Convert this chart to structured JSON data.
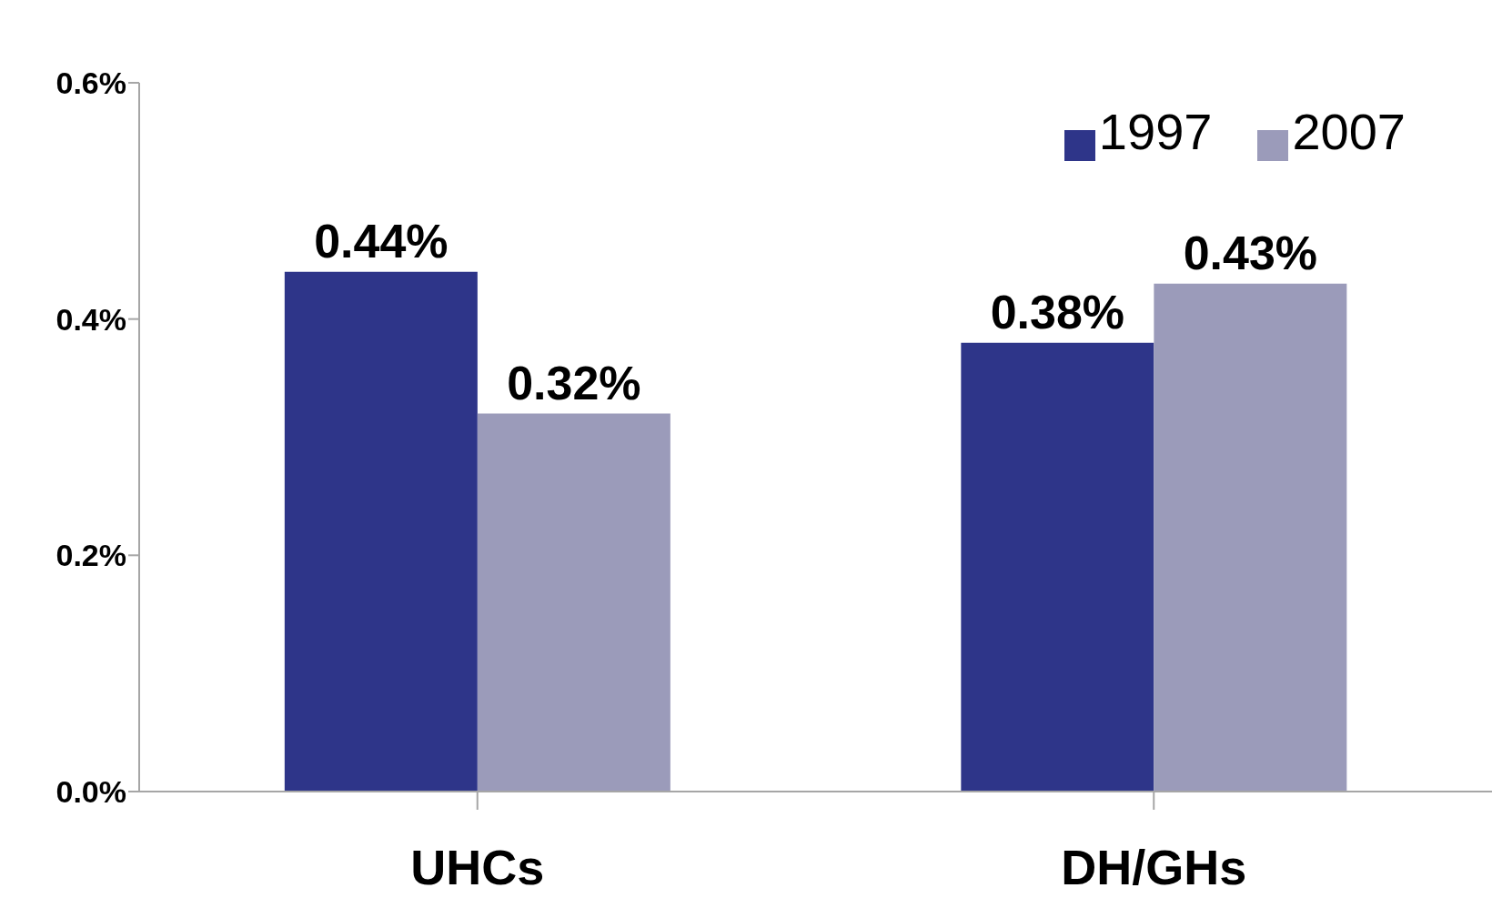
{
  "chart_data": {
    "type": "bar",
    "categories": [
      "UHCs",
      "DH/GHs"
    ],
    "series": [
      {
        "name": "1997",
        "color": "#2e3589",
        "values": [
          0.44,
          0.38
        ],
        "value_labels": [
          "0.44%",
          "0.38%"
        ]
      },
      {
        "name": "2007",
        "color": "#9b9bba",
        "values": [
          0.32,
          0.43
        ],
        "value_labels": [
          "0.32%",
          "0.43%"
        ]
      }
    ],
    "ylim": [
      0,
      0.6
    ],
    "yticks": [
      {
        "value": 0,
        "label": "0.0%"
      },
      {
        "value": 0.2,
        "label": "0.2%"
      },
      {
        "value": 0.4,
        "label": "0.4%"
      },
      {
        "value": 0.6,
        "label": "0.6%"
      }
    ],
    "grid": false,
    "legend": "top right"
  }
}
